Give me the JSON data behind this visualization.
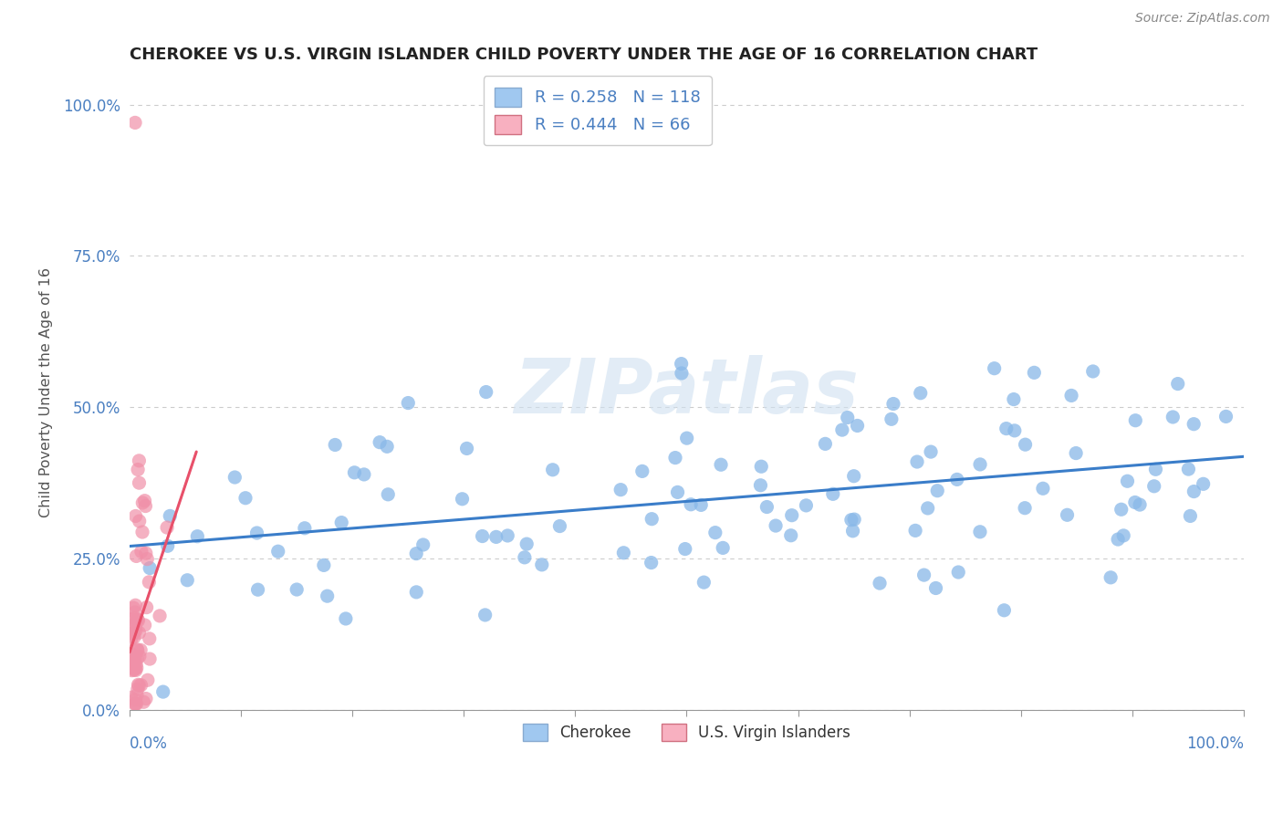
{
  "title": "CHEROKEE VS U.S. VIRGIN ISLANDER CHILD POVERTY UNDER THE AGE OF 16 CORRELATION CHART",
  "source": "Source: ZipAtlas.com",
  "ylabel": "Child Poverty Under the Age of 16",
  "ytick_labels": [
    "0.0%",
    "25.0%",
    "50.0%",
    "75.0%",
    "100.0%"
  ],
  "ytick_positions": [
    0.0,
    0.25,
    0.5,
    0.75,
    1.0
  ],
  "xtick_labels": [
    "0.0%",
    "100.0%"
  ],
  "xlim": [
    0.0,
    1.0
  ],
  "ylim": [
    0.0,
    1.05
  ],
  "watermark": "ZIPatlas",
  "legend_r1": "R = 0.258   N = 118",
  "legend_r2": "R = 0.444   N = 66",
  "cherokee_R": 0.258,
  "cherokee_N": 118,
  "virgin_R": 0.444,
  "virgin_N": 66,
  "cherokee_color": "#89b8e8",
  "virgin_color": "#f090a8",
  "trend_cherokee_color": "#3a7dc9",
  "trend_virgin_color": "#e8506a",
  "legend_cherokee_patch": "#a0c8f0",
  "legend_virgin_patch": "#f8b0c0",
  "watermark_color": "#cfe0f0",
  "title_fontsize": 13,
  "axis_label_color": "#4a7fc1",
  "ylabel_color": "#555555"
}
